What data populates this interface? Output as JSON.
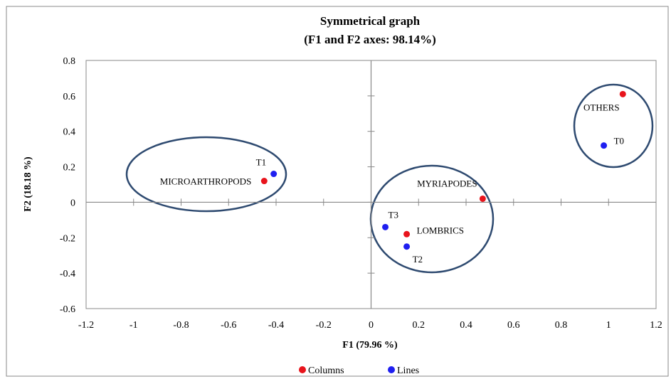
{
  "chart_data": {
    "type": "scatter",
    "title": "Symmetrical graph",
    "subtitle": "(F1 and F2 axes: 98.14%)",
    "xlabel": "F1 (79.96 %)",
    "ylabel": "F2 (18.18 %)",
    "xlim": [
      -1.2,
      1.2
    ],
    "ylim": [
      -0.6,
      0.8
    ],
    "x_ticks": [
      "-1.2",
      "-1",
      "-0.8",
      "-0.6",
      "-0.4",
      "-0.2",
      "0",
      "0.2",
      "0.4",
      "0.6",
      "0.8",
      "1",
      "1.2"
    ],
    "y_ticks": [
      "0.8",
      "0.6",
      "0.4",
      "0.2",
      "0",
      "-0.2",
      "-0.4",
      "-0.6"
    ],
    "grid": false,
    "legend_position": "bottom",
    "series": [
      {
        "name": "Columns",
        "color": "#e8141c",
        "points": [
          {
            "label": "OTHERS",
            "x": 1.06,
            "y": 0.61
          },
          {
            "label": "MICROARTHROPODS",
            "x": -0.45,
            "y": 0.12
          },
          {
            "label": "MYRIAPODES",
            "x": 0.47,
            "y": 0.02
          },
          {
            "label": "LOMBRICS",
            "x": 0.15,
            "y": -0.18
          }
        ]
      },
      {
        "name": "Lines",
        "color": "#1f1ff0",
        "points": [
          {
            "label": "T0",
            "x": 0.98,
            "y": 0.32
          },
          {
            "label": "T1",
            "x": -0.41,
            "y": 0.16
          },
          {
            "label": "T3",
            "x": 0.06,
            "y": -0.14
          },
          {
            "label": "T2",
            "x": 0.15,
            "y": -0.25
          }
        ]
      }
    ],
    "ellipse_color": "#2e4a70"
  }
}
